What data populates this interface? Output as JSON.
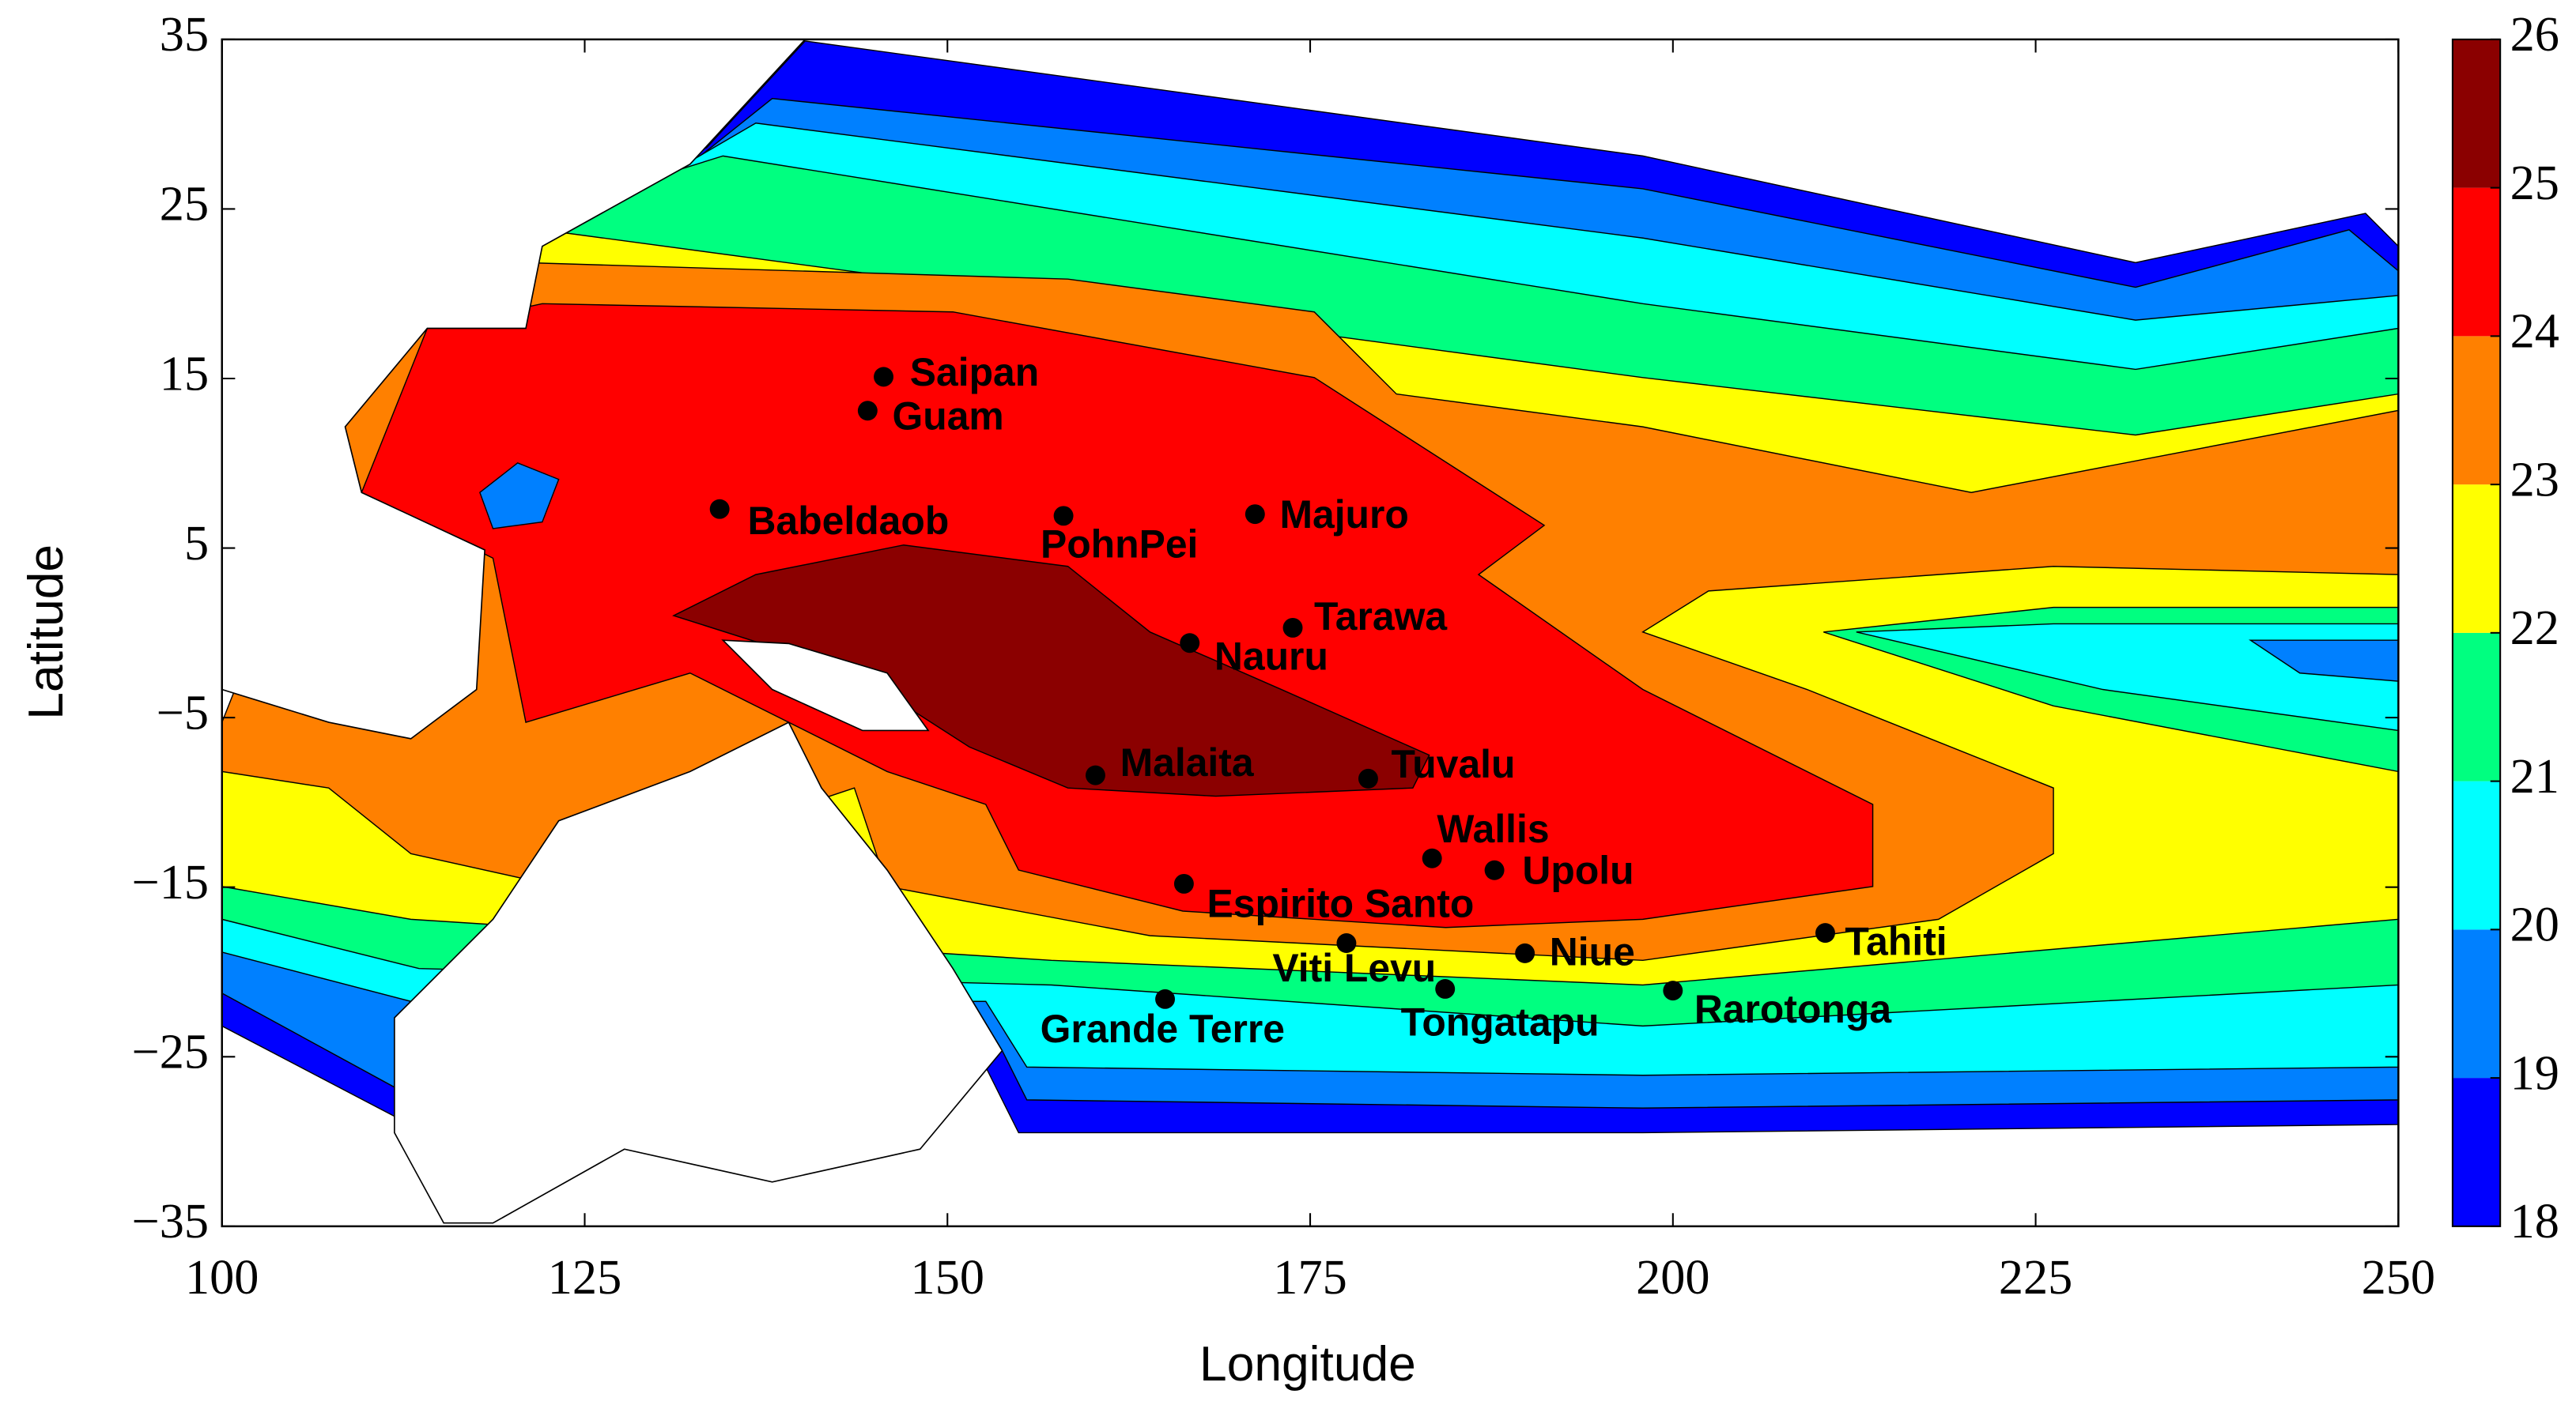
{
  "chart_data": {
    "type": "contour",
    "x_label": "Longitude",
    "y_label": "Latitude",
    "xlim": [
      100,
      250
    ],
    "ylim": [
      -35,
      35
    ],
    "xticks": [
      100,
      125,
      150,
      175,
      200,
      225,
      250
    ],
    "yticks": [
      {
        "value": -35,
        "label": "−35"
      },
      {
        "value": -25,
        "label": "−25"
      },
      {
        "value": -15,
        "label": "−15"
      },
      {
        "value": -5,
        "label": "−5"
      },
      5,
      15,
      25,
      35
    ],
    "colorbar": {
      "ticks": [
        18,
        19,
        20,
        21,
        22,
        23,
        24,
        25,
        26
      ],
      "colors": [
        "#0000ff",
        "#0080ff",
        "#00ffff",
        "#00ff80",
        "#ffff00",
        "#ff8000",
        "#ff0000",
        "#8b0000"
      ]
    },
    "points": {
      "labels": [
        "Saipan",
        "Guam",
        "Babeldaob",
        "PohnPei",
        "Majuro",
        "Tarawa",
        "Nauru",
        "Malaita",
        "Tuvalu",
        "Wallis",
        "Upolu",
        "Espirito Santo",
        "Viti Levu",
        "Niue",
        "Tahiti",
        "Grande Terre",
        "Tongatapu",
        "Rarotonga"
      ],
      "x": [
        145.6,
        144.5,
        134.3,
        158.0,
        171.2,
        173.8,
        166.7,
        160.2,
        179.0,
        183.4,
        187.7,
        166.3,
        177.5,
        189.8,
        210.5,
        165.0,
        184.3,
        200.0
      ],
      "y": [
        15.1,
        13.1,
        7.3,
        6.9,
        7.0,
        0.3,
        -0.6,
        -8.4,
        -8.6,
        -13.3,
        -14.0,
        -14.8,
        -18.3,
        -18.9,
        -17.7,
        -21.6,
        -21.0,
        -21.1
      ],
      "color": "#000000"
    }
  }
}
